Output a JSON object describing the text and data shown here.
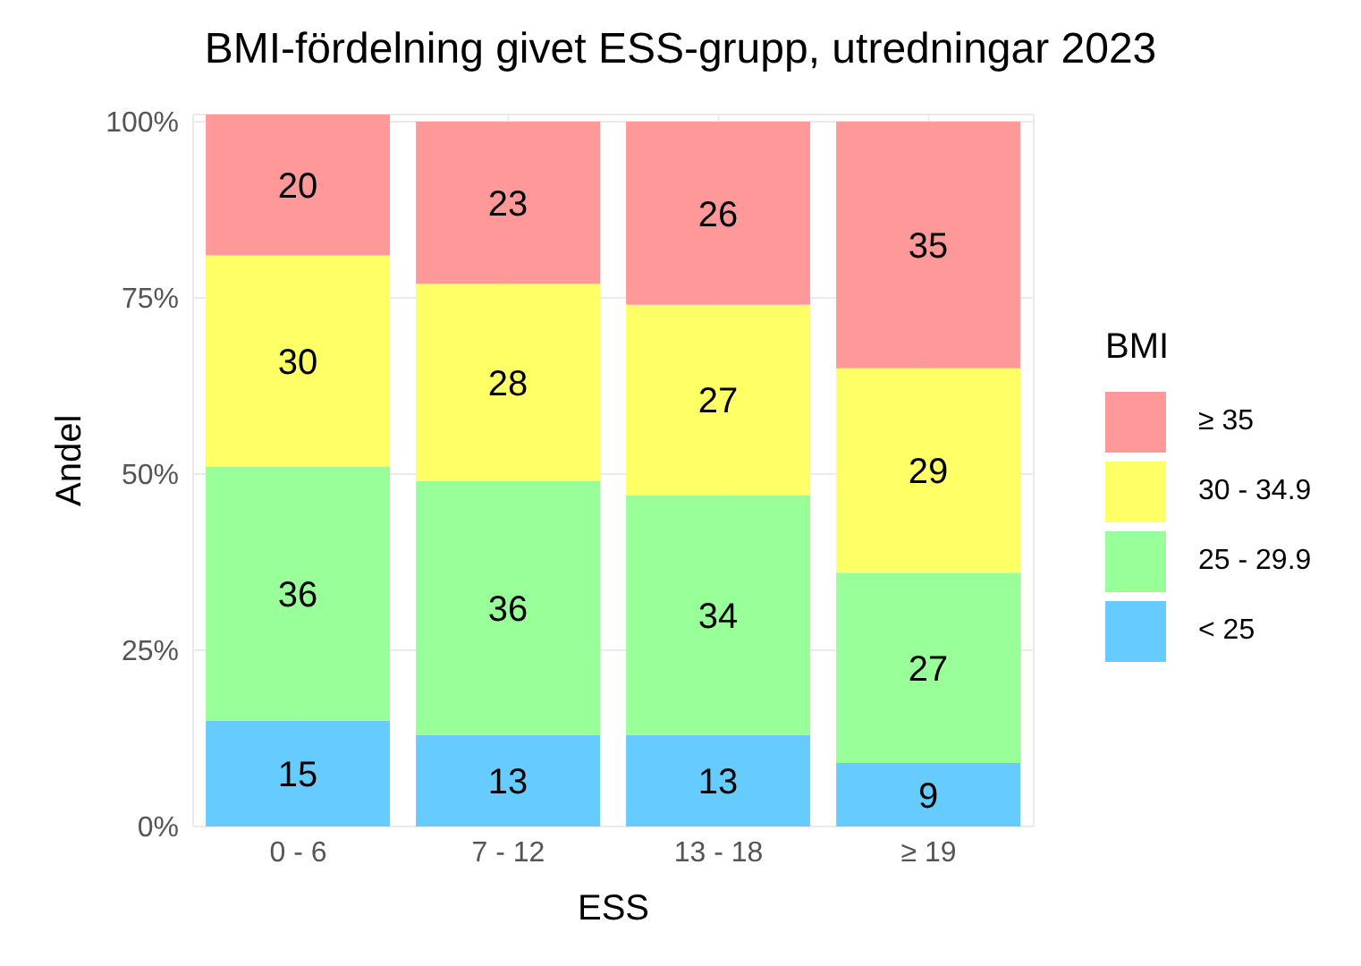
{
  "chart_data": {
    "type": "bar",
    "title": "BMI-fördelning givet ESS-grupp, utredningar 2023",
    "xlabel": "ESS",
    "ylabel": "Andel",
    "legend_title": "BMI",
    "categories": [
      "0 -  6",
      "7 - 12",
      "13 - 18",
      "≥ 19"
    ],
    "series": [
      {
        "name": "< 25",
        "color": "#66ccff",
        "values": [
          15,
          13,
          13,
          9
        ]
      },
      {
        "name": "25 - 29.9",
        "color": "#99ff99",
        "values": [
          36,
          36,
          34,
          27
        ]
      },
      {
        "name": "30 - 34.9",
        "color": "#ffff66",
        "values": [
          30,
          28,
          27,
          29
        ]
      },
      {
        "name": "≥ 35",
        "color": "#ff9999",
        "values": [
          20,
          23,
          26,
          35
        ]
      }
    ],
    "stacked": true,
    "data_labels": true,
    "ylim": [
      0,
      101
    ],
    "yticks": [
      {
        "value": 0,
        "label": "0%"
      },
      {
        "value": 25,
        "label": "25%"
      },
      {
        "value": 50,
        "label": "50%"
      },
      {
        "value": 75,
        "label": "75%"
      },
      {
        "value": 100,
        "label": "100%"
      }
    ],
    "grid": true,
    "legend": "right"
  }
}
